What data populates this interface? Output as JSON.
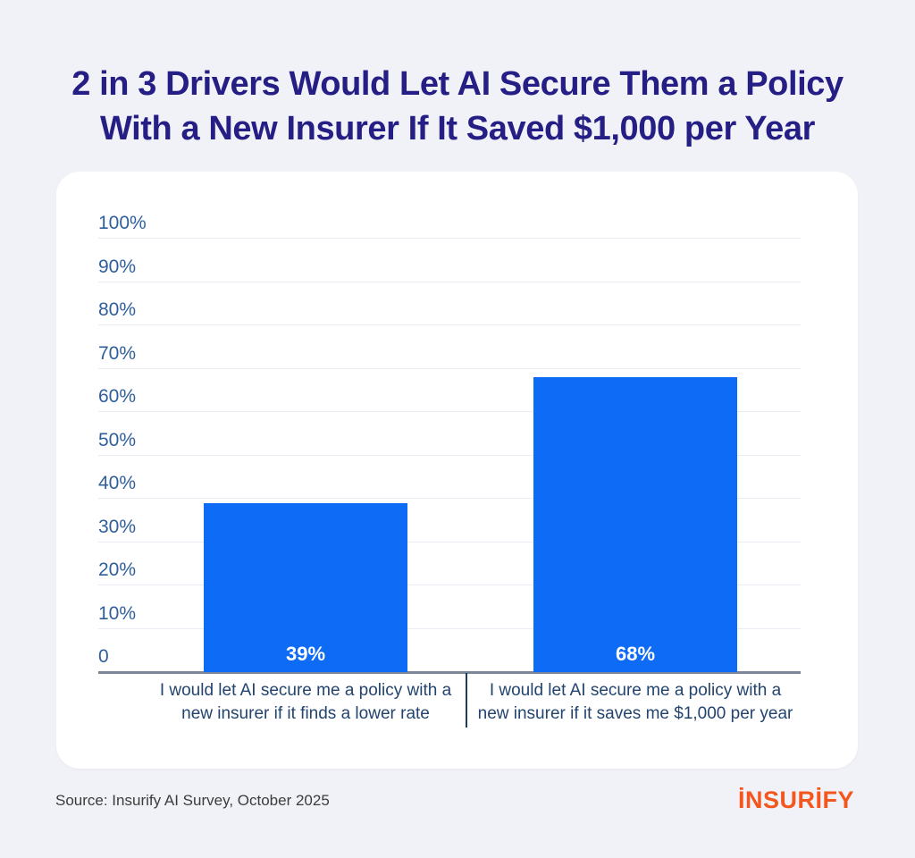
{
  "title": {
    "lines": [
      "2 in 3 Drivers Would Let AI Secure Them a Policy",
      "With a New Insurer If It Saved $1,000 per Year"
    ],
    "color": "#241e85"
  },
  "chart_data": {
    "type": "bar",
    "title": "",
    "xlabel": "",
    "ylabel": "",
    "categories": [
      "I would let AI secure me a policy with a new insurer if it finds a lower rate",
      "I would let AI secure me a policy with a new insurer if it saves me $1,000 per year"
    ],
    "categories_display": [
      "I would let AI secure me a policy with a\nnew insurer if it finds a lower rate",
      "I would let AI secure me a policy with a\nnew insurer if it saves me $1,000 per year"
    ],
    "values": [
      39,
      68
    ],
    "value_labels": [
      "39%",
      "68%"
    ],
    "ylim": [
      0,
      100
    ],
    "grid": true,
    "legend": "none",
    "y_ticks": [
      {
        "value": 100,
        "label": "100%"
      },
      {
        "value": 90,
        "label": "90%"
      },
      {
        "value": 80,
        "label": "80%"
      },
      {
        "value": 70,
        "label": "70%"
      },
      {
        "value": 60,
        "label": "60%"
      },
      {
        "value": 50,
        "label": "50%"
      },
      {
        "value": 40,
        "label": "40%"
      },
      {
        "value": 30,
        "label": "30%"
      },
      {
        "value": 20,
        "label": "20%"
      },
      {
        "value": 10,
        "label": "10%"
      },
      {
        "value": 0,
        "label": "0"
      }
    ],
    "bar_color": "#0d6bf5",
    "tick_label_color": "#2f5f9b",
    "category_label_color": "#22446f",
    "value_label_color": "#ffffff"
  },
  "footer": {
    "source": "Source: Insurify AI Survey, October 2025",
    "logo_text": "insurify",
    "logo_color": "#f4571d"
  }
}
